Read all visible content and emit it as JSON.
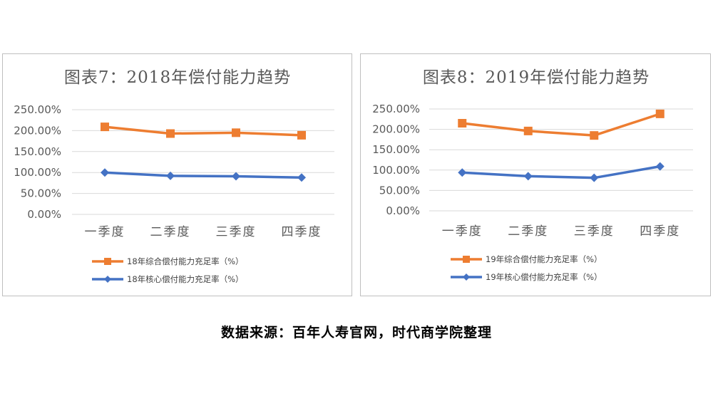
{
  "chart_data": [
    {
      "type": "line",
      "title": "图表7：2018年偿付能力趋势",
      "categories": [
        "一季度",
        "二季度",
        "三季度",
        "四季度"
      ],
      "y_ticks": [
        "250.00%",
        "200.00%",
        "150.00%",
        "100.00%",
        "50.00%",
        "0.00%"
      ],
      "ylim": [
        0,
        250
      ],
      "grid": true,
      "legend_position": "bottom",
      "series": [
        {
          "name": "18年综合偿付能力充足率（%）",
          "color": "#ED7D31",
          "marker": "square",
          "values": [
            209,
            193,
            195,
            189
          ]
        },
        {
          "name": "18年核心偿付能力充足率（%）",
          "color": "#4472C4",
          "marker": "diamond",
          "values": [
            100,
            92,
            91,
            88
          ]
        }
      ]
    },
    {
      "type": "line",
      "title": "图表8：2019年偿付能力趋势",
      "categories": [
        "一季度",
        "二季度",
        "三季度",
        "四季度"
      ],
      "y_ticks": [
        "250.00%",
        "200.00%",
        "150.00%",
        "100.00%",
        "50.00%",
        "0.00%"
      ],
      "ylim": [
        0,
        250
      ],
      "grid": true,
      "legend_position": "bottom",
      "series": [
        {
          "name": "19年综合偿付能力充足率（%）",
          "color": "#ED7D31",
          "marker": "square",
          "values": [
            215,
            196,
            185,
            238
          ]
        },
        {
          "name": "19年核心偿付能力充足率（%）",
          "color": "#4472C4",
          "marker": "diamond",
          "values": [
            94,
            85,
            81,
            109
          ]
        }
      ]
    }
  ],
  "footer": {
    "source": "数据来源：百年人寿官网，时代商学院整理"
  }
}
